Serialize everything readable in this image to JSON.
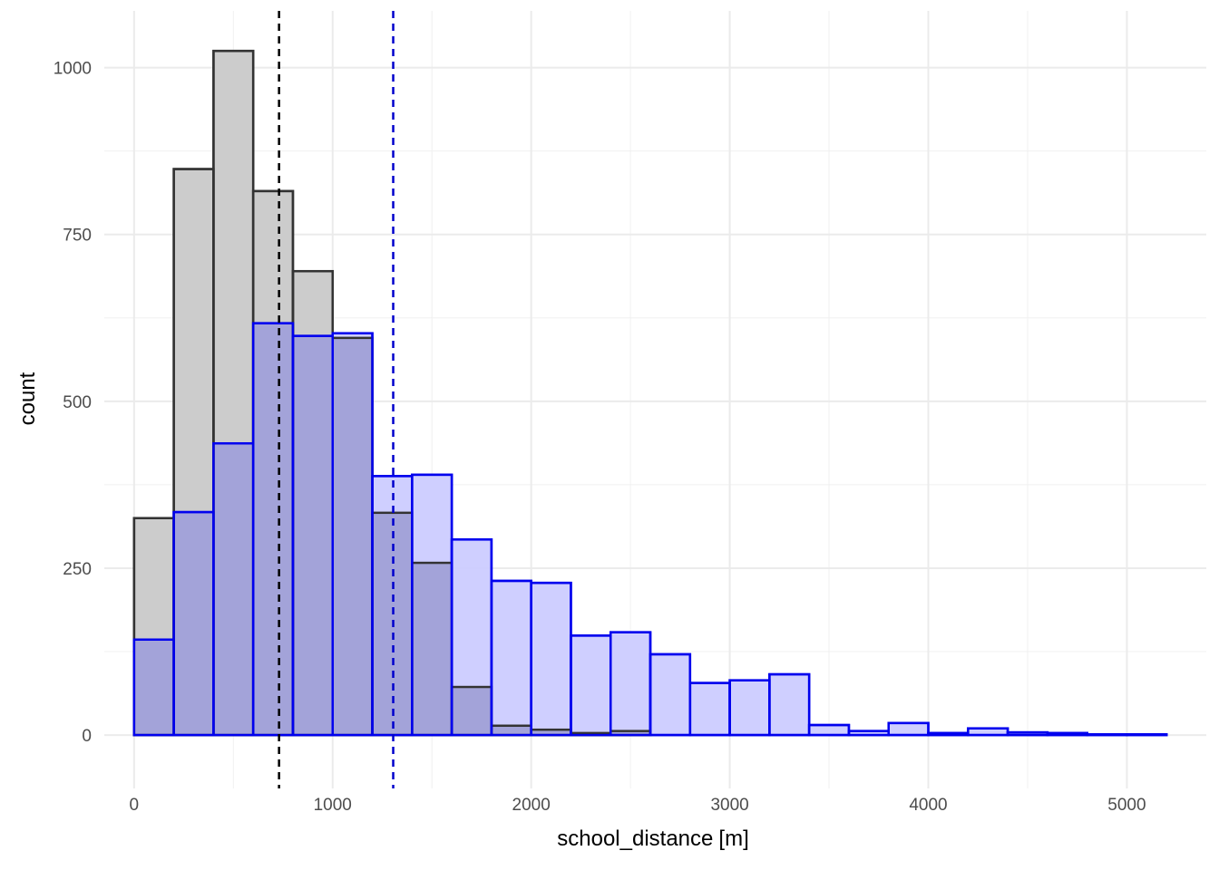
{
  "chart_data": {
    "type": "bar",
    "subtype": "overlaid-histogram",
    "title": "",
    "xlabel": "school_distance",
    "xlabel_unit": "m",
    "ylabel": "count",
    "xlim": [
      -150,
      5400
    ],
    "ylim": [
      -80,
      1085
    ],
    "x_ticks": [
      0,
      1000,
      2000,
      3000,
      4000,
      5000
    ],
    "y_ticks": [
      0,
      250,
      500,
      750,
      1000
    ],
    "x_tick_labels": [
      "0",
      "1000",
      "2000",
      "3000",
      "4000",
      "5000"
    ],
    "y_tick_labels": [
      "0",
      "250",
      "500",
      "750",
      "1000"
    ],
    "bin_width": 200,
    "bin_starts": [
      0,
      200,
      400,
      600,
      800,
      1000,
      1200,
      1400,
      1600,
      1800,
      2000,
      2200,
      2400,
      2600,
      2800,
      3000,
      3200,
      3400,
      3600,
      3800,
      4000,
      4200,
      4400,
      4600,
      4800,
      5000
    ],
    "grid": true,
    "legend": "none",
    "series": [
      {
        "values": [
          325,
          848,
          1025,
          815,
          695,
          595,
          333,
          258,
          72,
          14,
          8,
          3,
          6,
          0,
          0,
          0,
          0,
          0,
          0,
          0,
          0,
          0,
          0,
          0,
          0,
          0
        ],
        "fill": "#cccccc",
        "stroke": "#333333",
        "mean_line": 730,
        "mean_line_color": "#000000"
      },
      {
        "values": [
          143,
          334,
          437,
          617,
          598,
          602,
          388,
          390,
          293,
          231,
          228,
          149,
          154,
          121,
          78,
          82,
          91,
          15,
          6,
          18,
          3,
          10,
          4,
          3,
          1,
          1
        ],
        "fill": "#ccccff",
        "stroke": "#0000ee",
        "mean_line": 1305,
        "mean_line_color": "#0000cc"
      }
    ]
  }
}
